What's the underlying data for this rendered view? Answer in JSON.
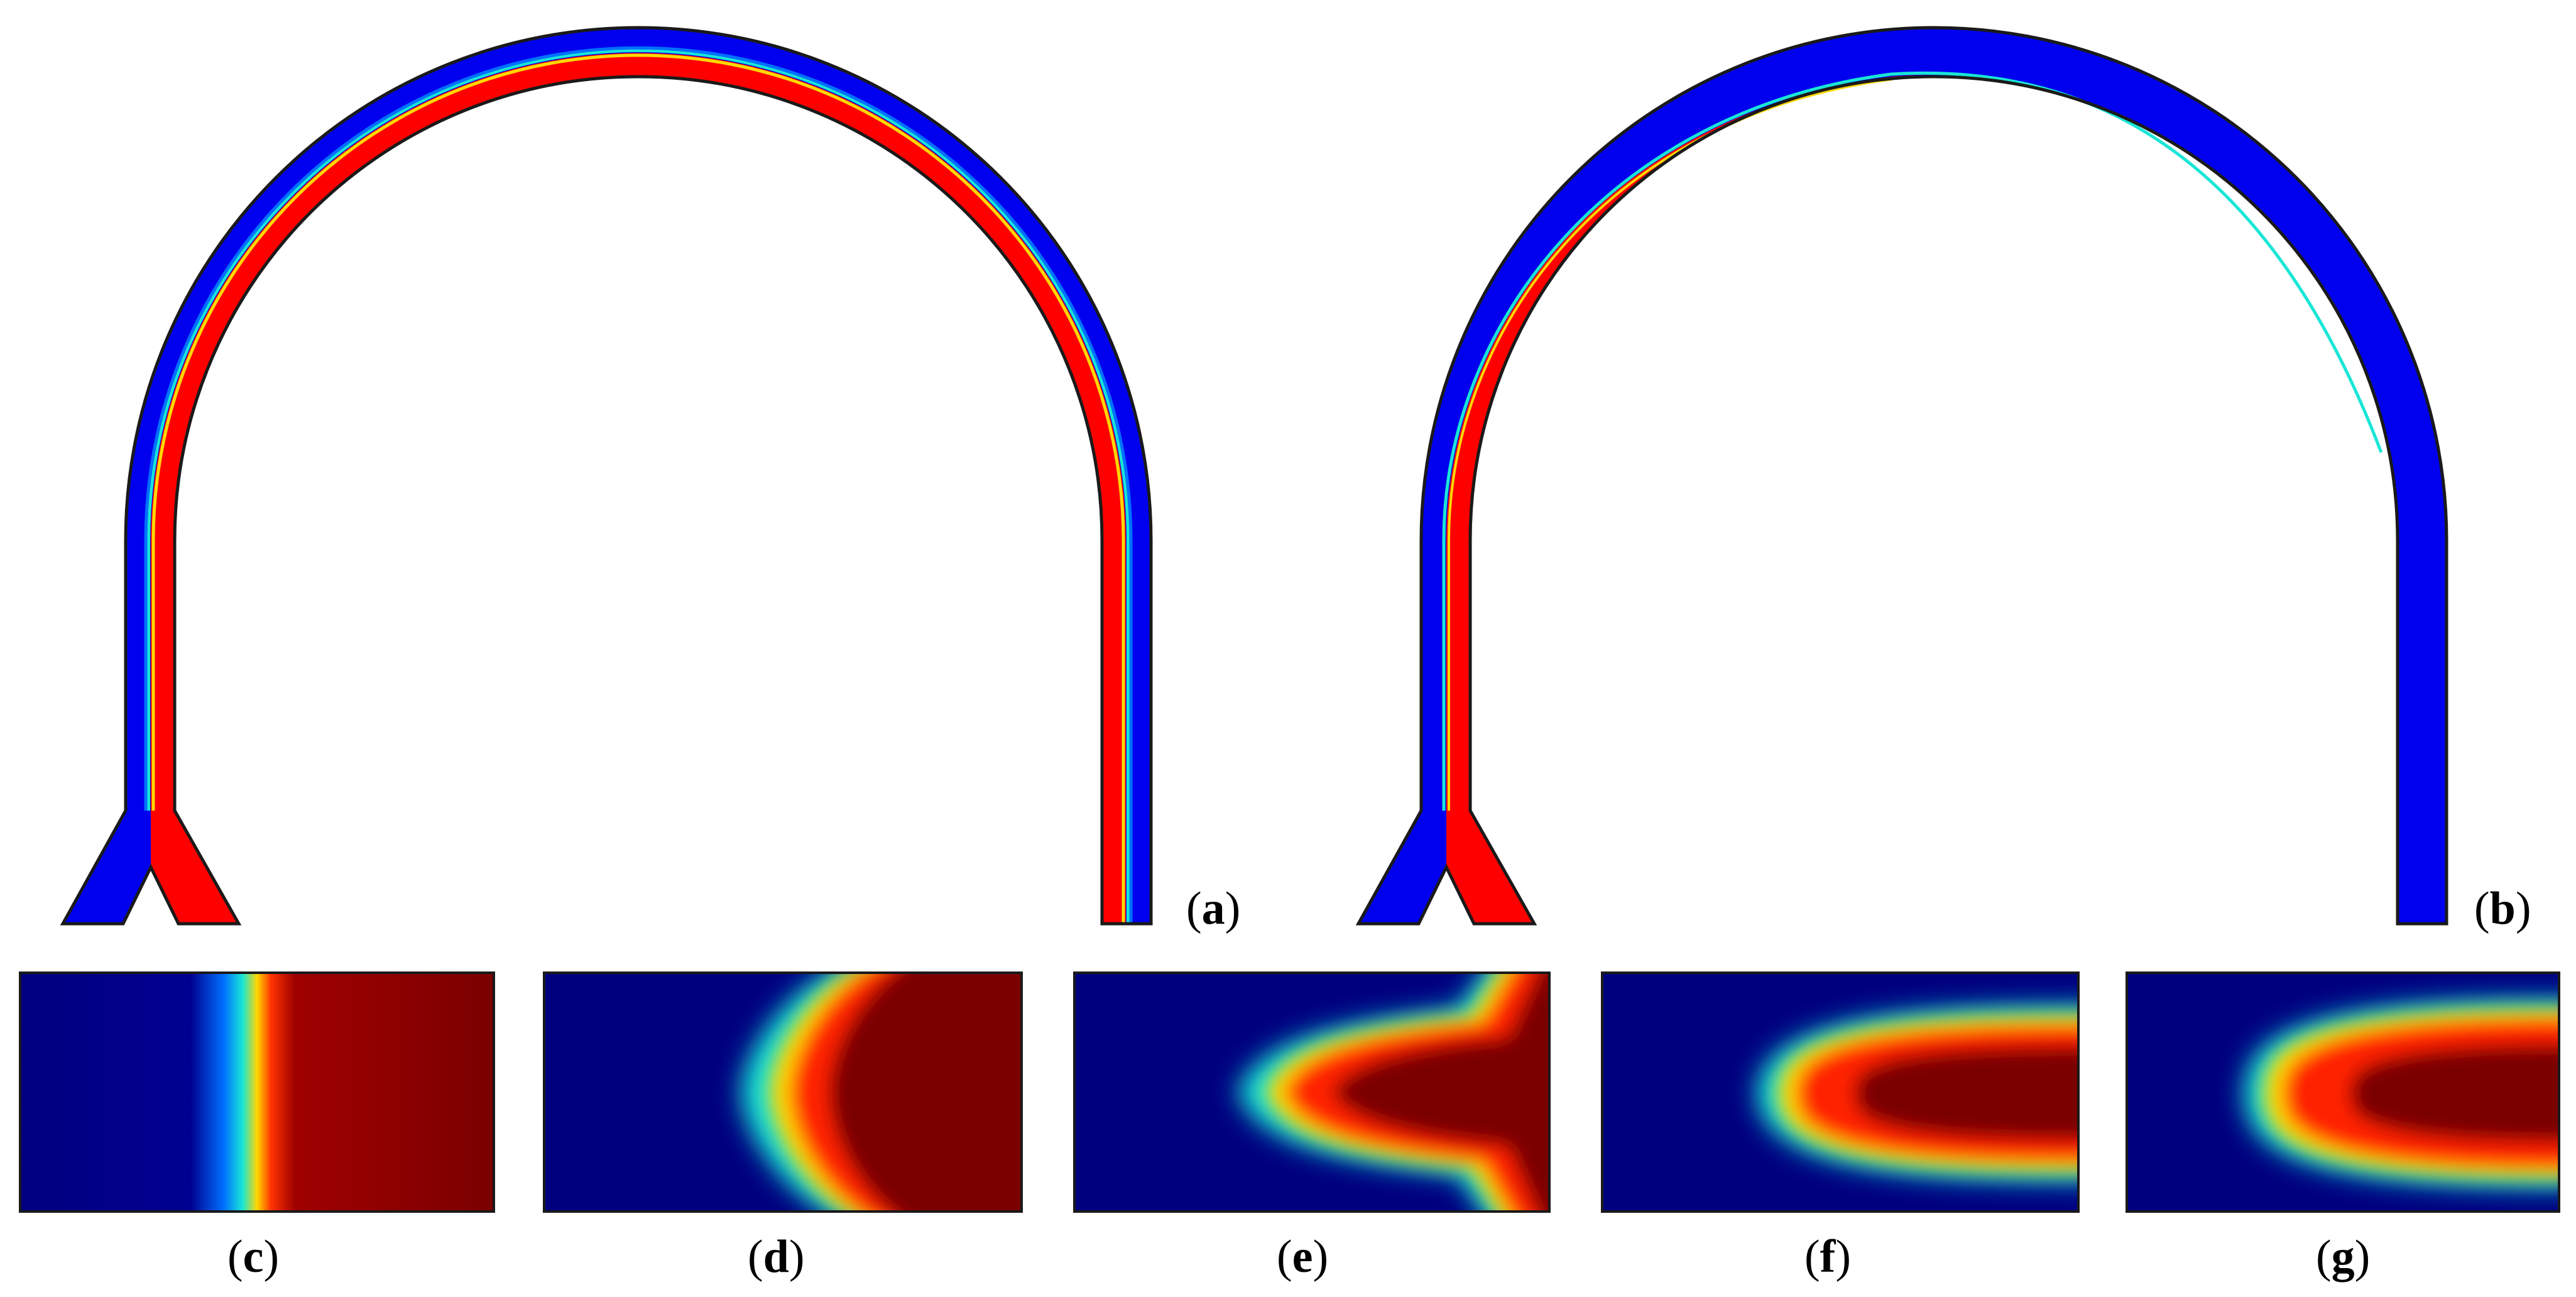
{
  "figure": {
    "panel_labels": [
      "a",
      "b",
      "c",
      "d",
      "e",
      "f",
      "g"
    ],
    "colors": {
      "fluid_low": "#0000ee",
      "fluid_high": "#ff0000",
      "cross_low": "#00007f",
      "cross_mid_blue": "#0070ff",
      "cross_mid_cyan": "#19e6d6",
      "cross_mid_green": "#7cf07c",
      "cross_mid_yellow": "#ffd800",
      "cross_high": "#7a0000",
      "outline": "#1a1a1a"
    },
    "panels": {
      "a": {
        "label": "a",
        "description_key": "mixer-full-interface"
      },
      "b": {
        "label": "b",
        "description_key": "mixer-partial-interface"
      },
      "c": {
        "label": "c"
      },
      "d": {
        "label": "d"
      },
      "e": {
        "label": "e"
      },
      "f": {
        "label": "f"
      },
      "g": {
        "label": "g"
      }
    }
  }
}
